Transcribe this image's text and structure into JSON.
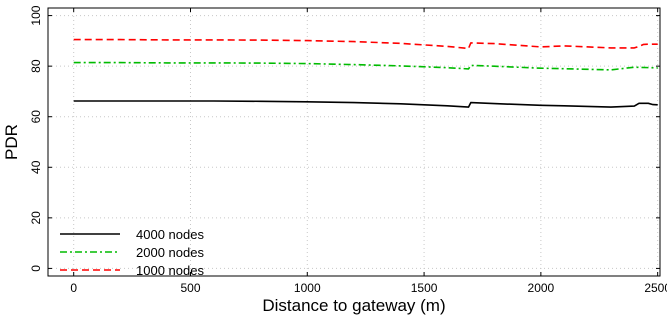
{
  "chart_data": {
    "type": "line",
    "xlabel": "Distance to gateway (m)",
    "ylabel": "PDR",
    "xlim": [
      -110,
      2510
    ],
    "ylim": [
      -3,
      103
    ],
    "xticks": [
      0,
      500,
      1000,
      1500,
      2000,
      2500
    ],
    "yticks": [
      0,
      20,
      40,
      60,
      80,
      100
    ],
    "grid": true,
    "legend_position": "bottom-left",
    "series": [
      {
        "name": "4000 nodes",
        "color": "#000000",
        "dash": "solid",
        "x": [
          0,
          200,
          400,
          600,
          800,
          1000,
          1200,
          1400,
          1600,
          1690,
          1700,
          1800,
          2000,
          2100,
          2300,
          2400,
          2420,
          2440,
          2460,
          2480,
          2500
        ],
        "y": [
          66.2,
          66.2,
          66.2,
          66.2,
          66.1,
          65.9,
          65.6,
          65.1,
          64.3,
          63.8,
          65.6,
          65.2,
          64.5,
          64.3,
          63.8,
          64.2,
          65.3,
          65.3,
          65.3,
          64.8,
          64.7
        ]
      },
      {
        "name": "2000 nodes",
        "color": "#00bb00",
        "dash": "dashdot",
        "x": [
          0,
          200,
          400,
          600,
          800,
          1000,
          1200,
          1400,
          1600,
          1690,
          1700,
          1800,
          2000,
          2100,
          2300,
          2400,
          2500
        ],
        "y": [
          81.4,
          81.4,
          81.3,
          81.3,
          81.2,
          81.0,
          80.6,
          80.1,
          79.4,
          78.9,
          80.3,
          80.0,
          79.2,
          79.0,
          78.5,
          79.6,
          79.3
        ]
      },
      {
        "name": "1000 nodes",
        "color": "#ff0000",
        "dash": "dashed",
        "x": [
          0,
          200,
          400,
          600,
          800,
          1000,
          1200,
          1400,
          1600,
          1690,
          1700,
          1800,
          2000,
          2100,
          2300,
          2400,
          2420,
          2440,
          2460,
          2480,
          2500
        ],
        "y": [
          90.5,
          90.5,
          90.4,
          90.4,
          90.3,
          90.1,
          89.7,
          89.0,
          87.8,
          87.0,
          89.2,
          88.9,
          87.6,
          88.0,
          87.2,
          87.2,
          87.8,
          88.6,
          88.7,
          88.7,
          88.7
        ]
      }
    ]
  }
}
